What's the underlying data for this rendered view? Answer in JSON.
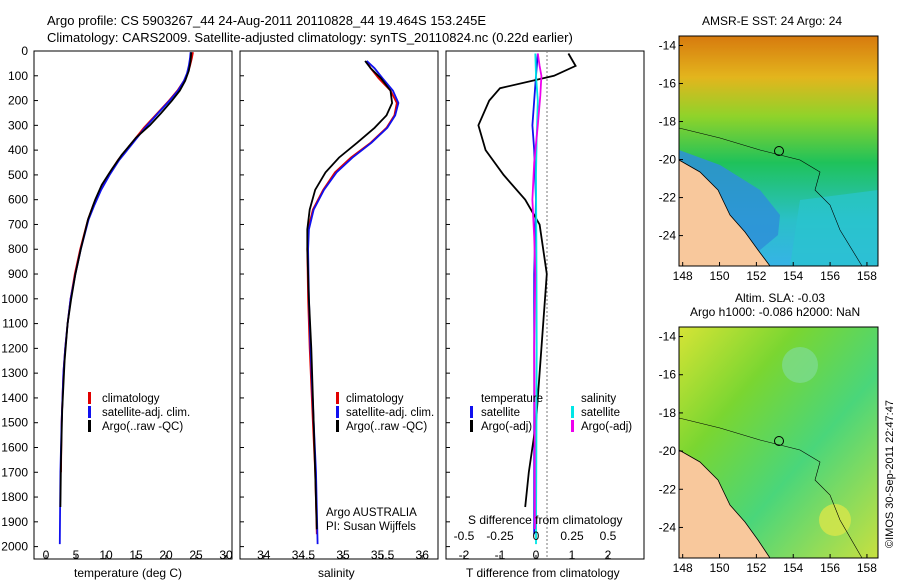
{
  "header": {
    "title_line1": "Argo profile: CS 5903267_44 24-Aug-2011 20110828_44 19.464S 153.245E",
    "title_line2": "Climatology: CARS2009. Satellite-adjusted climatology: synTS_20110824.nc (0.22d earlier)"
  },
  "colors": {
    "climatology": "#e00000",
    "satellite": "#1010ee",
    "argo": "#000000",
    "sal_satellite": "#00e6e6",
    "sal_argo": "#ee00ee",
    "land": "#f8c89c"
  },
  "panels": {
    "temperature": {
      "xlabel": "temperature (deg C)"
    },
    "salinity": {
      "xlabel": "salinity",
      "credit1": "Argo AUSTRALIA",
      "credit2": "PI: Susan Wijffels"
    },
    "difference": {
      "s_label": "S difference from climatology",
      "t_label": "T difference from climatology",
      "legend_temperature": "temperature",
      "legend_salinity": "salinity",
      "legend_satellite": "satellite",
      "legend_argo": "Argo(-adj)"
    }
  },
  "legend": {
    "climatology": "climatology",
    "satellite": "satellite-adj. clim.",
    "argo": "Argo(..raw -QC)"
  },
  "maps": {
    "sst_title": "AMSR-E SST: 24 Argo: 24",
    "sla_title1": "Altim. SLA: -0.03",
    "sla_title2": "Argo h1000: -0.086 h2000: NaN",
    "lon_ticks": [
      "148",
      "150",
      "152",
      "154",
      "156",
      "158"
    ],
    "lat_ticks": [
      "-14",
      "-16",
      "-18",
      "-20",
      "-22",
      "-24"
    ]
  },
  "footer": {
    "timestamp": "©IMOS 30-Sep-2011 22:47:47"
  },
  "chart_data": [
    {
      "type": "line",
      "xlabel": "temperature (deg C)",
      "ylabel": "",
      "xlim": [
        -2,
        31
      ],
      "ylim": [
        2050,
        0
      ],
      "xticks": [
        "0",
        "5",
        "10",
        "15",
        "20",
        "25",
        "30"
      ],
      "yticks": [
        "0",
        "100",
        "200",
        "300",
        "400",
        "500",
        "600",
        "700",
        "800",
        "900",
        "1000",
        "1100",
        "1200",
        "1300",
        "1400",
        "1500",
        "1600",
        "1700",
        "1800",
        "1900",
        "2000"
      ],
      "legend": [
        "climatology",
        "satellite-adj. clim.",
        "Argo(..raw -QC)"
      ],
      "series": [
        {
          "name": "climatology",
          "x": [
            24.5,
            24.3,
            24.0,
            23.6,
            23.0,
            21.9,
            20.5,
            18.6,
            16.3,
            14.0,
            12.0,
            10.4,
            9.0,
            7.9,
            7.0,
            5.7,
            4.8,
            4.1,
            3.6,
            3.2,
            2.9,
            2.6,
            2.5
          ],
          "y": [
            5,
            30,
            60,
            90,
            120,
            160,
            200,
            250,
            310,
            380,
            440,
            500,
            560,
            620,
            680,
            800,
            900,
            1000,
            1100,
            1200,
            1300,
            1500,
            1700
          ]
        },
        {
          "name": "satellite-adj. clim.",
          "x": [
            24.1,
            24.0,
            23.8,
            23.5,
            23.0,
            22.0,
            20.6,
            18.7,
            16.5,
            14.2,
            12.2,
            10.6,
            9.2,
            8.1,
            7.1,
            5.8,
            4.9,
            4.1,
            3.6,
            3.2,
            2.9,
            2.6,
            2.4,
            2.3
          ],
          "y": [
            5,
            30,
            60,
            90,
            120,
            160,
            200,
            250,
            310,
            380,
            440,
            500,
            560,
            620,
            680,
            800,
            900,
            1000,
            1100,
            1200,
            1300,
            1500,
            1700,
            1990
          ]
        },
        {
          "name": "Argo(..raw -QC)",
          "x": [
            24.2,
            24.1,
            23.8,
            23.2,
            22.3,
            21.0,
            19.2,
            17.3,
            15.0,
            12.6,
            10.9,
            9.3,
            8.2,
            7.0,
            5.8,
            4.9,
            4.2,
            3.6,
            3.1,
            2.7,
            2.5,
            2.4
          ],
          "y": [
            5,
            40,
            80,
            120,
            160,
            200,
            250,
            300,
            350,
            420,
            480,
            540,
            600,
            680,
            800,
            900,
            1000,
            1100,
            1250,
            1450,
            1650,
            1840
          ]
        }
      ]
    },
    {
      "type": "line",
      "xlabel": "salinity",
      "ylabel": "",
      "xlim": [
        33.7,
        36.2
      ],
      "ylim": [
        2050,
        0
      ],
      "xticks": [
        "34",
        "34.5",
        "35",
        "35.5",
        "36"
      ],
      "series": [
        {
          "name": "climatology",
          "x": [
            35.3,
            35.35,
            35.45,
            35.6,
            35.68,
            35.65,
            35.55,
            35.35,
            35.1,
            34.9,
            34.75,
            34.62,
            34.56,
            34.55,
            34.56,
            34.58,
            34.62,
            34.65,
            34.67
          ],
          "y": [
            40,
            70,
            110,
            160,
            210,
            260,
            310,
            370,
            430,
            490,
            560,
            640,
            720,
            800,
            1000,
            1200,
            1500,
            1700,
            1950
          ]
        },
        {
          "name": "satellite-adj. clim.",
          "x": [
            35.3,
            35.4,
            35.5,
            35.63,
            35.7,
            35.66,
            35.56,
            35.36,
            35.12,
            34.92,
            34.76,
            34.63,
            34.57,
            34.56,
            34.57,
            34.59,
            34.63,
            34.66,
            34.68
          ],
          "y": [
            40,
            70,
            110,
            160,
            210,
            260,
            310,
            370,
            430,
            490,
            560,
            640,
            720,
            800,
            1000,
            1200,
            1500,
            1700,
            1990
          ]
        },
        {
          "name": "Argo(..raw -QC)",
          "x": [
            35.28,
            35.35,
            35.48,
            35.6,
            35.62,
            35.55,
            35.4,
            35.18,
            34.95,
            34.78,
            34.65,
            34.58,
            34.55,
            34.55,
            34.57,
            34.6,
            34.63,
            34.65,
            34.67
          ],
          "y": [
            40,
            70,
            110,
            160,
            210,
            260,
            310,
            370,
            430,
            490,
            560,
            640,
            720,
            800,
            1000,
            1200,
            1500,
            1700,
            1930
          ]
        }
      ]
    },
    {
      "type": "line",
      "xlabel": "T difference from climatology",
      "ylabel": "",
      "xlim": [
        -2.5,
        3
      ],
      "ylim": [
        2050,
        0
      ],
      "xticks": [
        "-2",
        "-1",
        "0",
        "1",
        "2"
      ],
      "xticks_top_label": "S difference from climatology",
      "xticks_top": [
        "-0.5",
        "-0.25",
        "0",
        "0.25",
        "0.5"
      ],
      "series": [
        {
          "name": "temperature satellite",
          "x": [
            0.05,
            0.0,
            -0.05,
            -0.1,
            -0.05,
            0.0,
            -0.05,
            -0.05,
            -0.05,
            -0.05
          ],
          "y": [
            10,
            100,
            200,
            300,
            400,
            600,
            900,
            1200,
            1600,
            1950
          ]
        },
        {
          "name": "temperature Argo(-adj)",
          "x": [
            0.9,
            1.1,
            0.5,
            -1.0,
            -1.3,
            -1.6,
            -1.4,
            -0.9,
            -0.3,
            0.1,
            0.2,
            0.3,
            0.2,
            0.1,
            0.0,
            -0.2,
            -0.3
          ],
          "y": [
            10,
            60,
            100,
            150,
            200,
            300,
            400,
            500,
            600,
            700,
            800,
            900,
            1100,
            1300,
            1500,
            1700,
            1840
          ]
        },
        {
          "name": "salinity satellite",
          "x": [
            -0.02,
            0.0,
            0.05,
            0.02,
            0.0,
            0.01,
            0.02,
            0.01,
            0.0
          ],
          "y": [
            10,
            100,
            200,
            350,
            500,
            800,
            1200,
            1600,
            1990
          ]
        },
        {
          "name": "salinity Argo(-adj)",
          "x": [
            0.05,
            0.1,
            0.15,
            0.12,
            0.05,
            -0.05,
            -0.1,
            -0.05,
            -0.02,
            -0.05,
            -0.04,
            -0.03
          ],
          "y": [
            10,
            60,
            100,
            180,
            300,
            450,
            600,
            750,
            900,
            1200,
            1500,
            1930
          ]
        }
      ]
    }
  ]
}
